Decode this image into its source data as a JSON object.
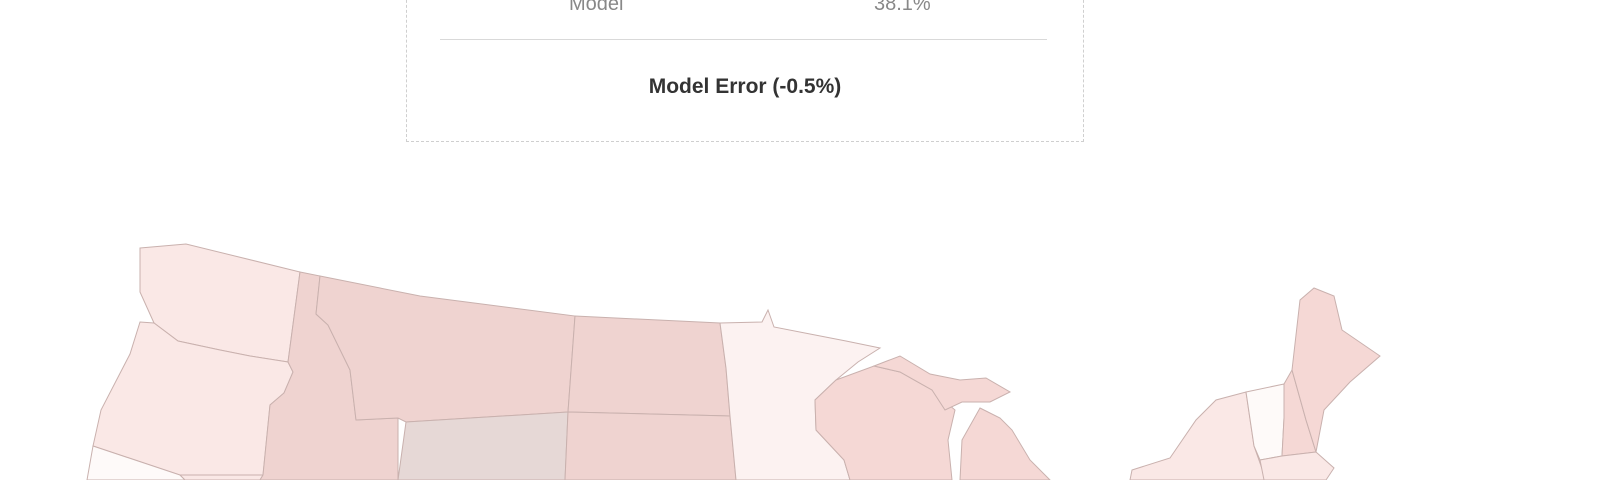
{
  "summary_card": {
    "model_label": "Model",
    "model_value": "38.1%",
    "error_label": "Model Error (-0.5%)"
  },
  "map": {
    "colors": {
      "lightest": "#fcf2f1",
      "light": "#fae8e6",
      "medium": "#f5d8d5",
      "darker": "#efd3d0",
      "neutral": "#e6d8d6",
      "near_white": "#fefaf9",
      "border": "#c9b1ae"
    },
    "states": [
      {
        "name": "washington",
        "shade": "light"
      },
      {
        "name": "oregon",
        "shade": "light"
      },
      {
        "name": "california",
        "shade": "near_white"
      },
      {
        "name": "nevada",
        "shade": "light"
      },
      {
        "name": "idaho",
        "shade": "darker"
      },
      {
        "name": "montana",
        "shade": "darker"
      },
      {
        "name": "wyoming",
        "shade": "neutral"
      },
      {
        "name": "north-dakota",
        "shade": "darker"
      },
      {
        "name": "south-dakota",
        "shade": "darker"
      },
      {
        "name": "minnesota",
        "shade": "lightest"
      },
      {
        "name": "wisconsin",
        "shade": "medium"
      },
      {
        "name": "michigan",
        "shade": "medium"
      },
      {
        "name": "new-york",
        "shade": "light"
      },
      {
        "name": "vermont",
        "shade": "near_white"
      },
      {
        "name": "new-hampshire",
        "shade": "medium"
      },
      {
        "name": "maine",
        "shade": "medium"
      },
      {
        "name": "massachusetts",
        "shade": "light"
      }
    ]
  }
}
